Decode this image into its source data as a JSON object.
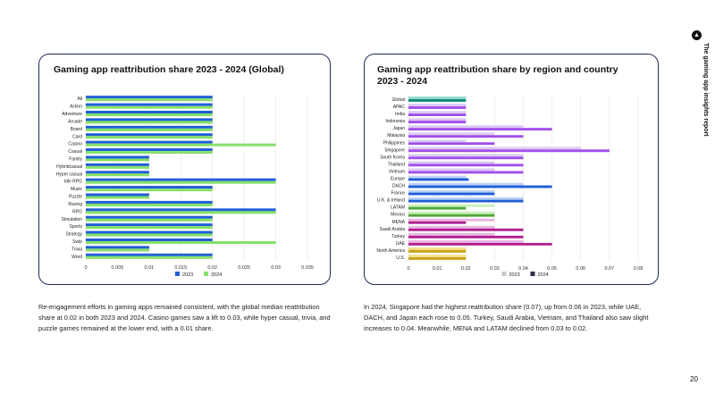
{
  "side_title": "The gaming app insights report",
  "page_number": "20",
  "captions": {
    "left": "Re-engagement efforts in gaming apps remained consistent, with the global median reattribution share at 0.02 in both 2023 and 2024. Casino games saw a lift to 0.03, while hyper casual, trivia, and puzzle games remained at the lower end, with a 0.01 share.",
    "right": "In 2024, Singapore had the highest reattribution share (0.07), up from 0.06 in 2023, while UAE, DACH, and Japan each rose to 0.05. Turkey, Saudi Arabia, Vietnam, and Thailand also saw slight increases to 0.04. Meanwhile, MENA and LATAM declined from 0.03 to 0.02."
  },
  "chart_data": [
    {
      "type": "bar",
      "orientation": "horizontal",
      "title": "Gaming app reattribution share 2023 - 2024 (Global)",
      "categories": [
        "All",
        "Action",
        "Adventure",
        "Arcade",
        "Board",
        "Card",
        "Casino",
        "Casual",
        "Family",
        "Hybridcasual",
        "Hyper casual",
        "Idle RPG",
        "Music",
        "Puzzle",
        "Racing",
        "RPG",
        "Simulation",
        "Sports",
        "Strategy",
        "Swip",
        "Trivia",
        "Word"
      ],
      "series": [
        {
          "name": "2023",
          "color": "#1f5fd6",
          "values": [
            0.02,
            0.02,
            0.02,
            0.02,
            0.02,
            0.02,
            0.02,
            0.02,
            0.01,
            0.01,
            0.01,
            0.03,
            0.02,
            0.01,
            0.02,
            0.03,
            0.02,
            0.02,
            0.02,
            0.02,
            0.01,
            0.02
          ]
        },
        {
          "name": "2024",
          "color": "#86e06a",
          "values": [
            0.02,
            0.02,
            0.02,
            0.02,
            0.02,
            0.02,
            0.03,
            0.02,
            0.01,
            0.01,
            0.01,
            0.03,
            0.02,
            0.01,
            0.02,
            0.03,
            0.02,
            0.02,
            0.02,
            0.03,
            0.01,
            0.02
          ]
        }
      ],
      "xlim": [
        0,
        0.035
      ],
      "xticks": [
        "0",
        "0.005",
        "0.01",
        "0.015",
        "0.02",
        "0.025",
        "0.03",
        "0.035"
      ],
      "grid": true,
      "legend": "bottom"
    },
    {
      "type": "bar",
      "orientation": "horizontal",
      "title": "Gaming app reattribution share by region and country 2023 - 2024",
      "title_lines": [
        "Gaming app reattribution share by region and country",
        "2023 - 2024"
      ],
      "categories": [
        "Global",
        "APAC",
        "India",
        "Indonesia",
        "Japan",
        "Malaysia",
        "Philippines",
        "Singapore",
        "South Korea",
        "Thailand",
        "Vietnam",
        "Europe",
        "DACH",
        "France",
        "U.K. & Ireland",
        "LATAM",
        "Mexico",
        "MENA",
        "Saudi Arabia",
        "Turkey",
        "UAE",
        "North America",
        "U.S."
      ],
      "groups": [
        "global",
        "apac",
        "apac",
        "apac",
        "apac",
        "apac",
        "apac",
        "apac",
        "apac",
        "apac",
        "apac",
        "europe",
        "europe",
        "europe",
        "europe",
        "latam",
        "latam",
        "mena",
        "mena",
        "mena",
        "mena",
        "na",
        "na"
      ],
      "group_colors": {
        "global": {
          "2023": "#8fd9c9",
          "2024": "#0f8a78"
        },
        "apac": {
          "2023": "#dcc9f5",
          "2024": "#a24ee8"
        },
        "europe": {
          "2023": "#bfd3f7",
          "2024": "#1f5fd6"
        },
        "latam": {
          "2023": "#c9f0b8",
          "2024": "#4fa83a"
        },
        "mena": {
          "2023": "#ebb6e3",
          "2024": "#b0208f"
        },
        "na": {
          "2023": "#f3df8a",
          "2024": "#c9a21a"
        }
      },
      "series": [
        {
          "name": "2023",
          "color": "#c9c9d4",
          "values": [
            0.02,
            0.02,
            0.02,
            0.02,
            0.04,
            0.03,
            0.02,
            0.06,
            0.04,
            0.03,
            0.03,
            0.02,
            0.04,
            0.03,
            0.04,
            0.03,
            0.03,
            0.03,
            0.03,
            0.03,
            0.04,
            0.02,
            0.02
          ]
        },
        {
          "name": "2024",
          "color": "#2a2f45",
          "values": [
            0.02,
            0.02,
            0.02,
            0.02,
            0.05,
            0.04,
            0.03,
            0.07,
            0.04,
            0.04,
            0.04,
            0.021,
            0.05,
            0.03,
            0.04,
            0.02,
            0.03,
            0.02,
            0.04,
            0.04,
            0.05,
            0.02,
            0.02
          ]
        }
      ],
      "xlim": [
        0,
        0.08
      ],
      "xticks": [
        "0",
        "0.01",
        "0.02",
        "0.03",
        "0.04",
        "0.05",
        "0.06",
        "0.07",
        "0.08"
      ],
      "grid": true,
      "legend": "bottom"
    }
  ]
}
